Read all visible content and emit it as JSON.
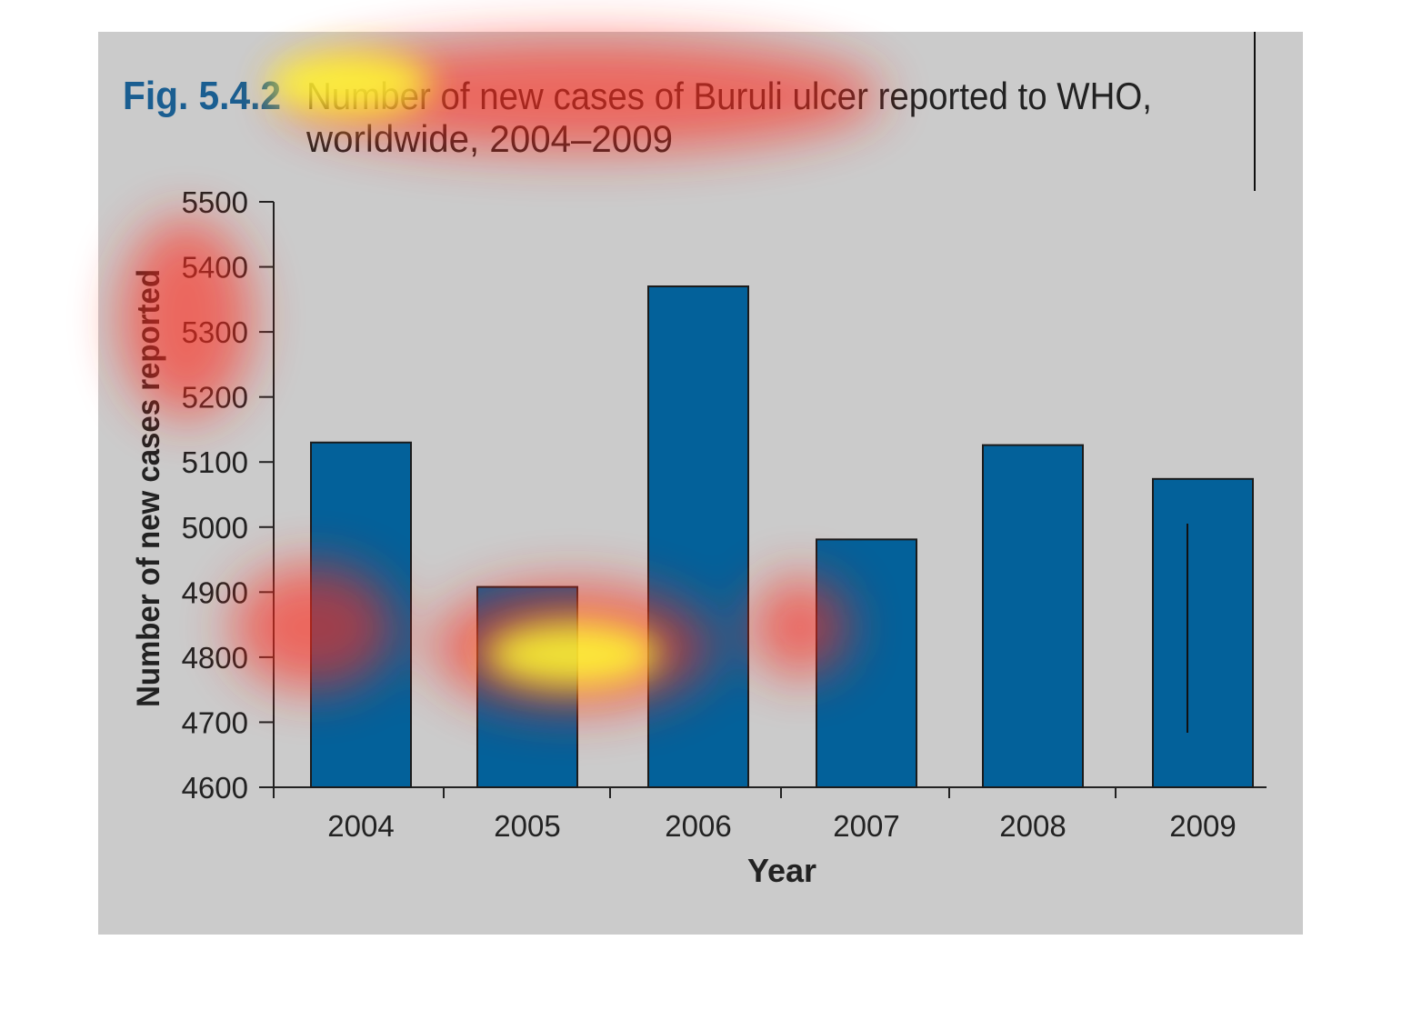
{
  "figure": {
    "label": "Fig. 5.4.2",
    "title_line1": "Number of new cases of Buruli ulcer reported to WHO,",
    "title_line2": "worldwide, 2004–2009"
  },
  "colors": {
    "panel": "#cbcbcb",
    "bar": "#03619a",
    "fig_label": "#1a5e91",
    "text": "#222222"
  },
  "chart_data": {
    "type": "bar",
    "title": "Number of new cases of Buruli ulcer reported to WHO, worldwide, 2004–2009",
    "xlabel": "Year",
    "ylabel": "Number of new cases reported",
    "categories": [
      "2004",
      "2005",
      "2006",
      "2007",
      "2008",
      "2009"
    ],
    "values": [
      5130,
      4908,
      5370,
      4981,
      5126,
      5074
    ],
    "ylim": [
      4600,
      5500
    ],
    "yticks": [
      4600,
      4700,
      4800,
      4900,
      5000,
      5100,
      5200,
      5300,
      5400,
      5500
    ],
    "ytick_labels": [
      "4600",
      "4700",
      "4800",
      "4900",
      "5000",
      "5100",
      "5200",
      "5300",
      "5400",
      "5500"
    ],
    "grid": false,
    "legend": "none",
    "overlay": "attention heatmap"
  }
}
